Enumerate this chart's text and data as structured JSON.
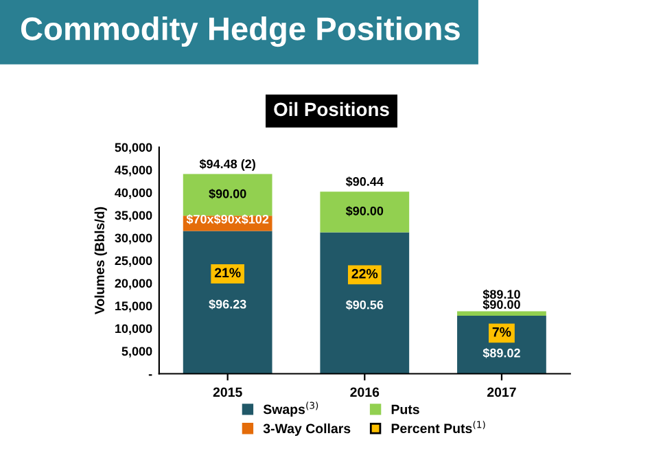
{
  "chart_data": {
    "type": "bar",
    "title": "Commodity Hedge Positions",
    "subtitle": "Oil Positions",
    "ylabel": "Volumes (Bbls/d)",
    "categories": [
      "2015",
      "2016",
      "2017"
    ],
    "stacked": true,
    "series": [
      {
        "name": "Swaps$^{(3)}$",
        "color": "#215868",
        "values": [
          31500,
          31200,
          12800
        ]
      },
      {
        "name": "3-Way Collars",
        "color": "#e46c0a",
        "values": [
          3400,
          0,
          0
        ]
      },
      {
        "name": "Puts",
        "color": "#92d050",
        "values": [
          9200,
          9000,
          1000
        ]
      },
      {
        "name": "Percent Puts$^{(1)}$",
        "color": "#ffc000",
        "values": [
          null,
          null,
          null
        ]
      }
    ],
    "annotations": [
      {
        "text": "21%",
        "x": "2015",
        "y": 31500
      },
      {
        "text": "22%",
        "x": "2016",
        "y": 31200
      },
      {
        "text": "7%",
        "x": "2017",
        "y": 12800
      },
      "$96.23",
      "$90.56",
      "$89.02",
      {
        "text": "$70x$90x$102",
        "x": "2015",
        "y": 34900
      },
      {
        "text": "$90.00",
        "x": "2015",
        "y": 44100
      },
      {
        "text": "$90.00",
        "x": "2016",
        "y": 40200
      },
      {
        "text": "$90.00",
        "x": "2017",
        "y": 13800
      },
      {
        "text": "$94.48 (2)",
        "x": "2015",
        "y": 44100
      },
      {
        "text": "$90.44",
        "x": "2016",
        "y": 40200
      },
      {
        "text": "$89.10",
        "x": "2017",
        "y": 13800
      }
    ],
    "ylim": [
      0,
      50000
    ],
    "yticks": [
      {
        "value": 0,
        "label": "-"
      },
      {
        "value": 5000,
        "label": "5,000"
      },
      {
        "value": 10000,
        "label": "10,000"
      },
      {
        "value": 15000,
        "label": "15,000"
      },
      {
        "value": 20000,
        "label": "20,000"
      },
      {
        "value": 25000,
        "label": "25,000"
      },
      {
        "value": 30000,
        "label": "30,000"
      },
      {
        "value": 35000,
        "label": "35,000"
      },
      {
        "value": 40000,
        "label": "40,000"
      },
      {
        "value": 45000,
        "label": "45,000"
      },
      {
        "value": 50000,
        "label": "50,000"
      }
    ],
    "grid": false,
    "legend": "bottom"
  }
}
